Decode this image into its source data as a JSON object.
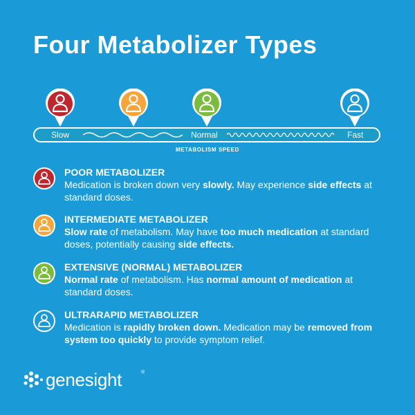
{
  "title": "Four Metabolizer Types",
  "colors": {
    "background": "#1a9ad6",
    "poor": "#c0262d",
    "intermediate": "#f5a53a",
    "extensive": "#7cbc3c",
    "ultrarapid": "#1a9ad6",
    "bar_fill": "#1e9cc8"
  },
  "speed_bar": {
    "slow_label": "Slow",
    "normal_label": "Normal",
    "fast_label": "Fast",
    "caption": "METABOLISM SPEED"
  },
  "pins": [
    {
      "icon": "person-icon",
      "color": "#c0262d"
    },
    {
      "icon": "person-icon",
      "color": "#f5a53a"
    },
    {
      "icon": "person-icon",
      "color": "#7cbc3c"
    },
    {
      "icon": "person-icon",
      "color": "#1a9ad6"
    }
  ],
  "items": [
    {
      "title": "POOR METABOLIZER",
      "desc": [
        {
          "t": "Medication is broken down very ",
          "b": false
        },
        {
          "t": "slowly.",
          "b": true
        },
        {
          "t": " May experience ",
          "b": false
        },
        {
          "t": "side effects",
          "b": true
        },
        {
          "t": " at standard doses.",
          "b": false
        }
      ]
    },
    {
      "title": "INTERMEDIATE METABOLIZER",
      "desc": [
        {
          "t": "Slow rate",
          "b": true
        },
        {
          "t": " of metabolism. May have ",
          "b": false
        },
        {
          "t": "too much medication",
          "b": true
        },
        {
          "t": " at standard doses, potentially causing ",
          "b": false
        },
        {
          "t": "side effects.",
          "b": true
        }
      ]
    },
    {
      "title": "EXTENSIVE (NORMAL) METABOLIZER",
      "desc": [
        {
          "t": "Normal rate",
          "b": true
        },
        {
          "t": " of metabolism. Has ",
          "b": false
        },
        {
          "t": "normal amount of medication",
          "b": true
        },
        {
          "t": " at standard doses.",
          "b": false
        }
      ]
    },
    {
      "title": "ULTRARAPID METABOLIZER",
      "desc": [
        {
          "t": "Medication is ",
          "b": false
        },
        {
          "t": "rapidly broken down.",
          "b": true
        },
        {
          "t": " Medication may be ",
          "b": false
        },
        {
          "t": "removed from system too quickly",
          "b": true
        },
        {
          "t": " to provide symptom relief.",
          "b": false
        }
      ]
    }
  ],
  "logo": {
    "text": "genesight",
    "reg": "®"
  }
}
